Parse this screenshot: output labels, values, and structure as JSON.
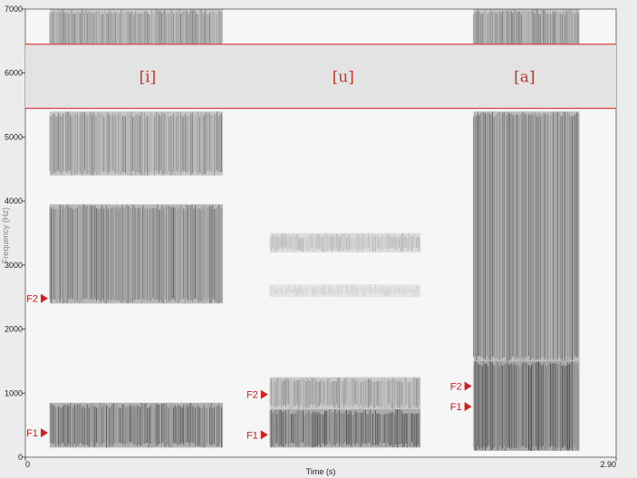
{
  "chart_data": {
    "type": "heatmap",
    "xlabel": "Time (s)",
    "ylabel": "Frequency (Hz)",
    "xlim": [
      0,
      2.9
    ],
    "ylim": [
      0,
      7000
    ],
    "x_tick_labels": [
      "0",
      "2.90"
    ],
    "y_ticks": [
      0,
      1000,
      2000,
      3000,
      4000,
      5000,
      6000,
      7000
    ],
    "y_tick_labels": [
      "0",
      "1000",
      "2000",
      "3000",
      "4000",
      "5000",
      "6000",
      "7000"
    ],
    "mask_band_hz": [
      5450,
      6450
    ],
    "vowels": [
      {
        "label": "[i]",
        "t_start": 0.12,
        "t_end": 0.97,
        "label_time": 0.6,
        "bands": [
          [
            150,
            850,
            0.78
          ],
          [
            2400,
            3950,
            0.7
          ],
          [
            4400,
            5400,
            0.55
          ],
          [
            5450,
            7000,
            0.55
          ]
        ],
        "formants": [
          {
            "name": "F1",
            "hz": 380
          },
          {
            "name": "F2",
            "hz": 2480
          }
        ]
      },
      {
        "label": "[u]",
        "t_start": 1.2,
        "t_end": 1.94,
        "label_time": 1.56,
        "bands": [
          [
            150,
            750,
            0.85
          ],
          [
            750,
            1250,
            0.5
          ],
          [
            3200,
            3500,
            0.3
          ],
          [
            2500,
            2700,
            0.18
          ]
        ],
        "formants": [
          {
            "name": "F1",
            "hz": 350
          },
          {
            "name": "F2",
            "hz": 980
          }
        ]
      },
      {
        "label": "[a]",
        "t_start": 2.2,
        "t_end": 2.72,
        "label_time": 2.45,
        "bands": [
          [
            100,
            1500,
            0.9
          ],
          [
            1500,
            5400,
            0.68
          ],
          [
            5450,
            7000,
            0.6
          ]
        ],
        "formants": [
          {
            "name": "F1",
            "hz": 790
          },
          {
            "name": "F2",
            "hz": 1110
          }
        ]
      }
    ]
  },
  "colors": {
    "marker": "#d02020",
    "rule": "#e04040",
    "vowel_text": "#c0392b"
  }
}
